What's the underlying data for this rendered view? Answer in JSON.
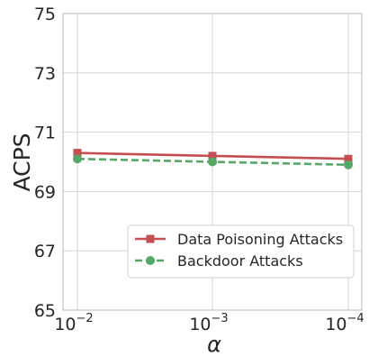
{
  "chart_data": {
    "type": "line",
    "xlabel": "α",
    "ylabel": "ACPS",
    "x_ticks": [
      {
        "base": "10",
        "exp": "−2"
      },
      {
        "base": "10",
        "exp": "−3"
      },
      {
        "base": "10",
        "exp": "−4"
      }
    ],
    "categories": [
      "10^-2",
      "10^-3",
      "10^-4"
    ],
    "ylim": [
      65,
      75
    ],
    "y_ticks": [
      65,
      67,
      69,
      71,
      73,
      75
    ],
    "grid": true,
    "legend_position": "lower-right",
    "series": [
      {
        "name": "Data Poisoning Attacks",
        "values": [
          70.3,
          70.2,
          70.1
        ],
        "color": "#c44e52",
        "marker": "square",
        "line_style": "solid"
      },
      {
        "name": "Backdoor Attacks",
        "values": [
          70.1,
          70.0,
          69.9
        ],
        "color": "#55a868",
        "marker": "circle",
        "line_style": "dashed"
      }
    ]
  }
}
